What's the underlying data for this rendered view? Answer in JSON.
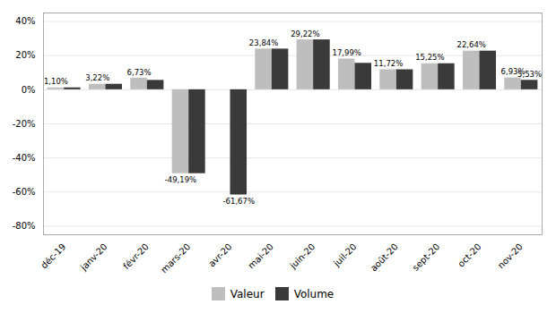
{
  "chart_data": {
    "type": "bar",
    "categories": [
      "déc-19",
      "janv-20",
      "févr-20",
      "mars-20",
      "avr-20",
      "mai-20",
      "juin-20",
      "juil-20",
      "août-20",
      "sept-20",
      "oct-20",
      "nov-20"
    ],
    "series": [
      {
        "name": "Valeur",
        "color": "#bebebe",
        "values": [
          1.1,
          3.22,
          6.73,
          -49.19,
          0.0,
          23.84,
          29.22,
          17.99,
          11.72,
          15.25,
          22.64,
          6.93
        ],
        "value_labels": [
          "1,10%",
          "3,22%",
          "6,73%",
          "-49,19%",
          null,
          "23,84%",
          "29,22%",
          "17,99%",
          "11,72%",
          "15,25%",
          "22,64%",
          "6,93%"
        ]
      },
      {
        "name": "Volume",
        "color": "#3a3a3a",
        "values": [
          1.1,
          3.22,
          5.5,
          -49.19,
          -61.67,
          23.84,
          29.22,
          15.5,
          11.72,
          15.25,
          22.64,
          5.53
        ],
        "value_labels": [
          null,
          null,
          null,
          null,
          "-61,67%",
          null,
          null,
          null,
          null,
          null,
          null,
          "5,53%"
        ]
      }
    ],
    "ylim": [
      -85,
      45
    ],
    "yticks": [
      {
        "value": -80,
        "label": "-80%"
      },
      {
        "value": -60,
        "label": "-60%"
      },
      {
        "value": -40,
        "label": "-40%"
      },
      {
        "value": -20,
        "label": "-20%"
      },
      {
        "value": 0,
        "label": "0%"
      },
      {
        "value": 20,
        "label": "20%"
      },
      {
        "value": 40,
        "label": "40%"
      }
    ],
    "grid": true,
    "legend": "bottom",
    "data_labels": true
  }
}
